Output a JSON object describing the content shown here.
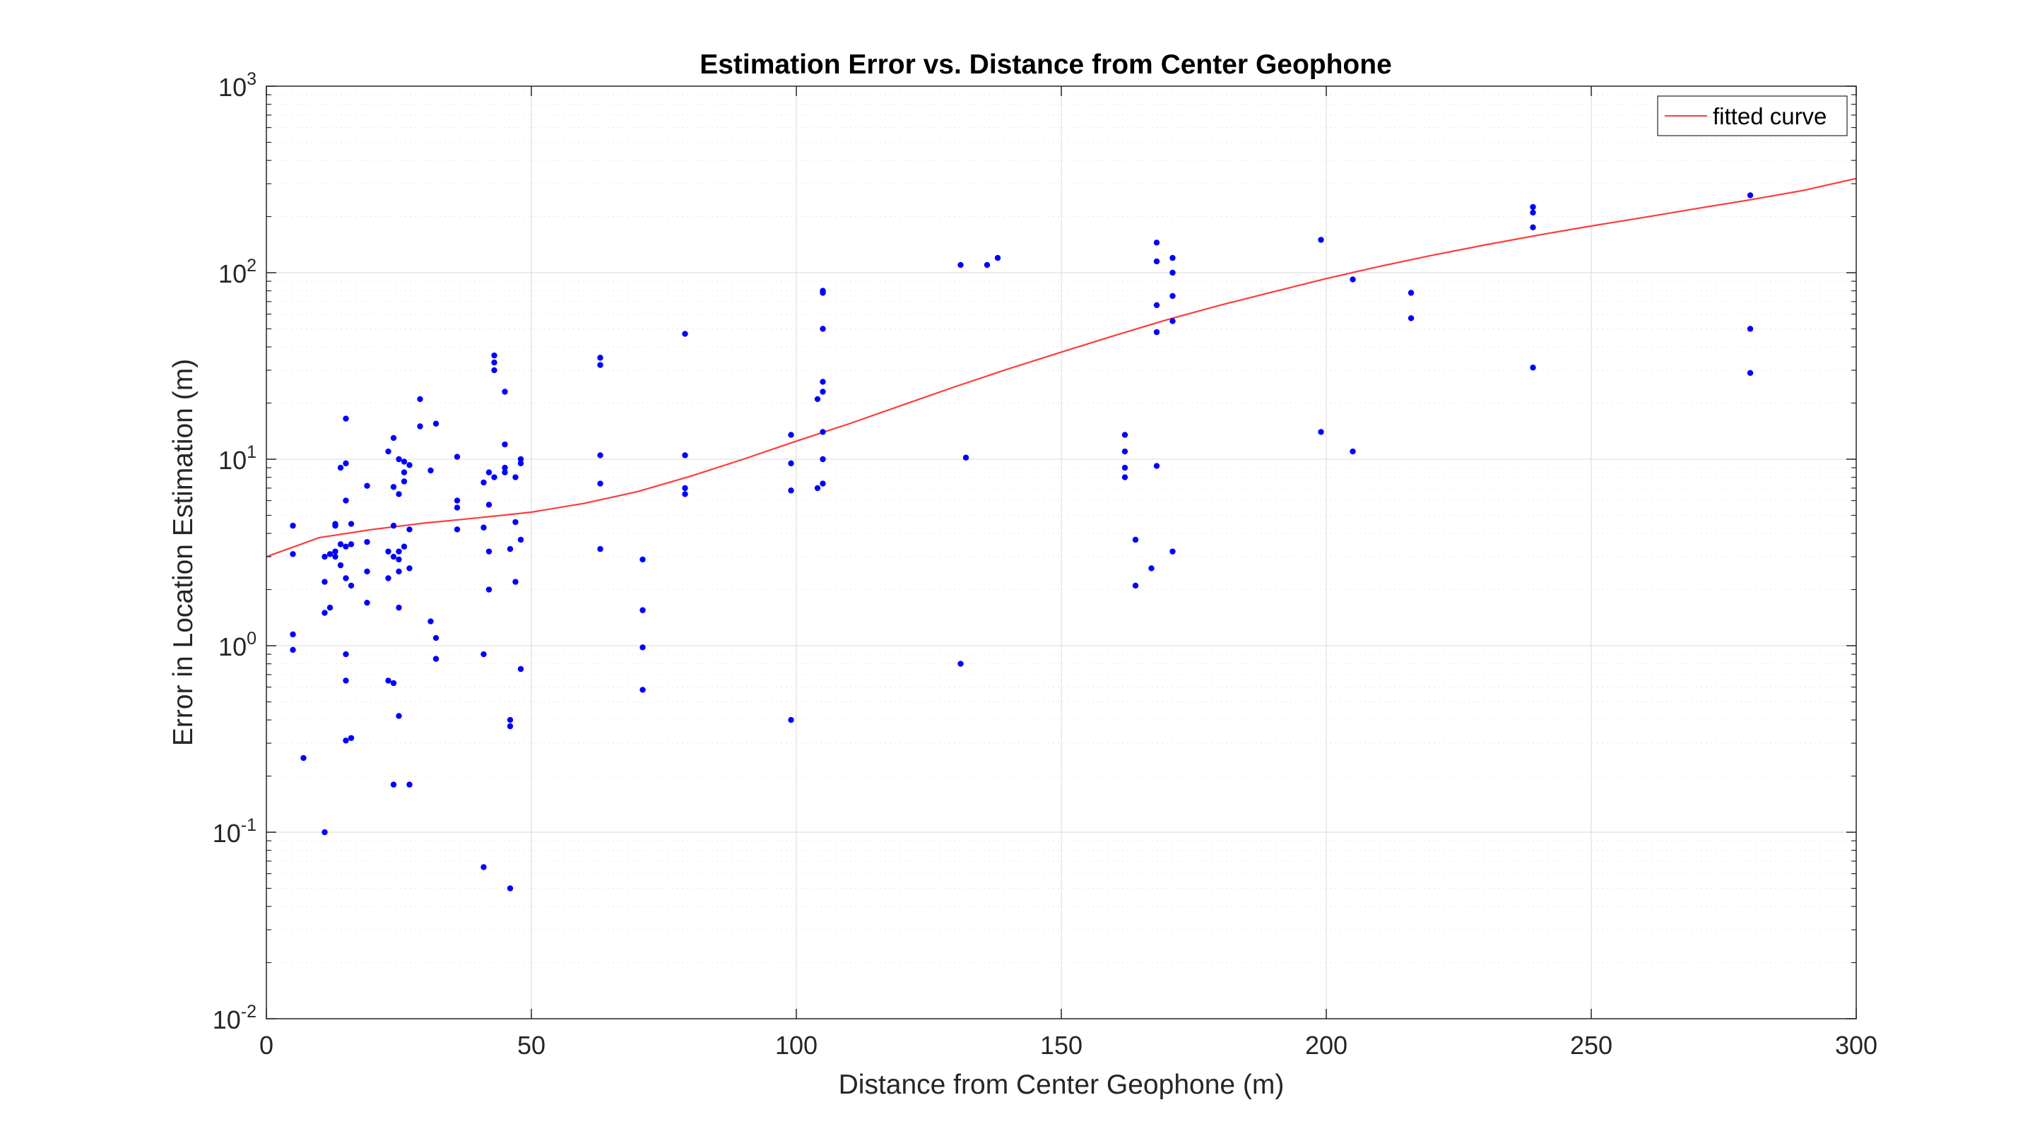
{
  "chart_data": {
    "type": "scatter",
    "title": "Estimation Error vs. Distance from Center Geophone",
    "xlabel": "Distance from Center Geophone (m)",
    "ylabel": "Error in Location Estimation (m)",
    "xlim": [
      0,
      300
    ],
    "ylim": [
      0.01,
      1000
    ],
    "yscale": "log",
    "grid": true,
    "x_ticks": [
      0,
      50,
      100,
      150,
      200,
      250,
      300
    ],
    "x_tick_labels": [
      "0",
      "50",
      "100",
      "150",
      "200",
      "250",
      "300"
    ],
    "y_ticks": [
      0.01,
      0.1,
      1,
      10,
      100,
      1000
    ],
    "y_tick_labels": [
      {
        "base": "10",
        "exp": "-2"
      },
      {
        "base": "10",
        "exp": "-1"
      },
      {
        "base": "10",
        "exp": "0"
      },
      {
        "base": "10",
        "exp": "1"
      },
      {
        "base": "10",
        "exp": "2"
      },
      {
        "base": "10",
        "exp": "3"
      }
    ],
    "legend": {
      "position": "top-right",
      "entries": [
        "fitted curve"
      ]
    },
    "colors": {
      "points": "#0000ff",
      "curve": "#ff3b3b",
      "grid": "#e0e0e0",
      "axes": "#262626"
    },
    "points": [
      [
        5,
        4.4
      ],
      [
        5,
        3.1
      ],
      [
        5,
        1.15
      ],
      [
        5,
        0.95
      ],
      [
        7,
        0.25
      ],
      [
        11,
        0.1
      ],
      [
        11,
        3.0
      ],
      [
        11,
        2.2
      ],
      [
        11,
        1.5
      ],
      [
        12,
        3.1
      ],
      [
        12,
        1.6
      ],
      [
        13,
        4.5
      ],
      [
        13,
        4.4
      ],
      [
        13,
        3.0
      ],
      [
        13,
        3.2
      ],
      [
        14,
        9.0
      ],
      [
        14,
        2.7
      ],
      [
        14,
        3.5
      ],
      [
        15,
        16.5
      ],
      [
        15,
        9.5
      ],
      [
        15,
        6.0
      ],
      [
        15,
        3.4
      ],
      [
        15,
        2.3
      ],
      [
        15,
        0.9
      ],
      [
        15,
        0.65
      ],
      [
        15,
        0.31
      ],
      [
        16,
        4.5
      ],
      [
        16,
        3.5
      ],
      [
        16,
        2.1
      ],
      [
        16,
        0.32
      ],
      [
        19,
        7.2
      ],
      [
        19,
        3.6
      ],
      [
        19,
        2.5
      ],
      [
        19,
        1.7
      ],
      [
        23,
        11.0
      ],
      [
        23,
        3.2
      ],
      [
        23,
        2.3
      ],
      [
        23,
        0.65
      ],
      [
        24,
        13.0
      ],
      [
        24,
        7.1
      ],
      [
        24,
        4.4
      ],
      [
        24,
        3.0
      ],
      [
        24,
        0.63
      ],
      [
        24,
        0.18
      ],
      [
        25,
        10.0
      ],
      [
        25,
        6.5
      ],
      [
        25,
        3.2
      ],
      [
        25,
        2.9
      ],
      [
        25,
        2.5
      ],
      [
        25,
        1.6
      ],
      [
        25,
        0.42
      ],
      [
        26,
        9.7
      ],
      [
        26,
        8.5
      ],
      [
        26,
        7.6
      ],
      [
        26,
        3.4
      ],
      [
        27,
        9.3
      ],
      [
        27,
        4.2
      ],
      [
        27,
        2.6
      ],
      [
        27,
        0.18
      ],
      [
        29,
        21.0
      ],
      [
        29,
        15.0
      ],
      [
        31,
        8.7
      ],
      [
        31,
        1.35
      ],
      [
        32,
        15.5
      ],
      [
        32,
        1.1
      ],
      [
        32,
        0.85
      ],
      [
        36,
        10.3
      ],
      [
        36,
        6.0
      ],
      [
        36,
        5.5
      ],
      [
        36,
        4.2
      ],
      [
        41,
        7.5
      ],
      [
        41,
        4.3
      ],
      [
        41,
        0.9
      ],
      [
        41,
        0.065
      ],
      [
        42,
        8.5
      ],
      [
        42,
        5.7
      ],
      [
        42,
        3.2
      ],
      [
        42,
        2.0
      ],
      [
        43,
        36.0
      ],
      [
        43,
        33.0
      ],
      [
        43,
        30.0
      ],
      [
        43,
        8.0
      ],
      [
        45,
        23.0
      ],
      [
        45,
        12.0
      ],
      [
        45,
        9.0
      ],
      [
        45,
        8.5
      ],
      [
        46,
        3.3
      ],
      [
        46,
        0.4
      ],
      [
        46,
        0.37
      ],
      [
        46,
        0.05
      ],
      [
        47,
        8.0
      ],
      [
        47,
        4.6
      ],
      [
        47,
        2.2
      ],
      [
        48,
        10.0
      ],
      [
        48,
        9.5
      ],
      [
        48,
        3.7
      ],
      [
        48,
        0.75
      ],
      [
        63,
        35.0
      ],
      [
        63,
        32.0
      ],
      [
        63,
        10.5
      ],
      [
        63,
        7.4
      ],
      [
        63,
        3.3
      ],
      [
        71,
        2.9
      ],
      [
        71,
        1.55
      ],
      [
        71,
        0.98
      ],
      [
        71,
        0.58
      ],
      [
        79,
        47.0
      ],
      [
        79,
        10.5
      ],
      [
        79,
        7.0
      ],
      [
        79,
        6.5
      ],
      [
        99,
        13.5
      ],
      [
        99,
        9.5
      ],
      [
        99,
        6.8
      ],
      [
        99,
        0.4
      ],
      [
        104,
        21.0
      ],
      [
        104,
        7.0
      ],
      [
        105,
        80.0
      ],
      [
        105,
        78.0
      ],
      [
        105,
        50.0
      ],
      [
        105,
        26.0
      ],
      [
        105,
        23.0
      ],
      [
        105,
        14.0
      ],
      [
        105,
        10.0
      ],
      [
        105,
        7.4
      ],
      [
        131,
        110.0
      ],
      [
        131,
        0.8
      ],
      [
        132,
        10.2
      ],
      [
        136,
        110.0
      ],
      [
        138,
        120.0
      ],
      [
        162,
        13.5
      ],
      [
        162,
        11.0
      ],
      [
        162,
        9.0
      ],
      [
        162,
        8.0
      ],
      [
        164,
        3.7
      ],
      [
        164,
        2.1
      ],
      [
        167,
        2.6
      ],
      [
        168,
        145.0
      ],
      [
        168,
        115.0
      ],
      [
        168,
        67.0
      ],
      [
        168,
        48.0
      ],
      [
        168,
        9.2
      ],
      [
        171,
        120.0
      ],
      [
        171,
        100.0
      ],
      [
        171,
        75.0
      ],
      [
        171,
        55.0
      ],
      [
        171,
        3.2
      ],
      [
        199,
        150.0
      ],
      [
        199,
        14.0
      ],
      [
        205,
        92.0
      ],
      [
        205,
        11.0
      ],
      [
        216,
        78.0
      ],
      [
        216,
        57.0
      ],
      [
        239,
        225.0
      ],
      [
        239,
        210.0
      ],
      [
        239,
        175.0
      ],
      [
        239,
        31.0
      ],
      [
        280,
        260.0
      ],
      [
        280,
        50.0
      ],
      [
        280,
        29.0
      ]
    ],
    "fitted_curve": {
      "name": "fitted curve",
      "x": [
        0,
        10,
        20,
        30,
        40,
        50,
        60,
        70,
        80,
        90,
        100,
        110,
        120,
        130,
        140,
        150,
        160,
        170,
        180,
        190,
        200,
        210,
        220,
        230,
        240,
        250,
        260,
        270,
        280,
        290,
        300
      ],
      "y": [
        3.0,
        3.8,
        4.2,
        4.55,
        4.85,
        5.2,
        5.8,
        6.7,
        8.1,
        10.0,
        12.5,
        15.5,
        19.5,
        24.5,
        30.5,
        37.5,
        46.0,
        56.0,
        67.0,
        79.0,
        93.0,
        108.0,
        124.0,
        141.0,
        159.0,
        178.0,
        198.0,
        221.0,
        246.0,
        276.0,
        320.0
      ]
    }
  }
}
